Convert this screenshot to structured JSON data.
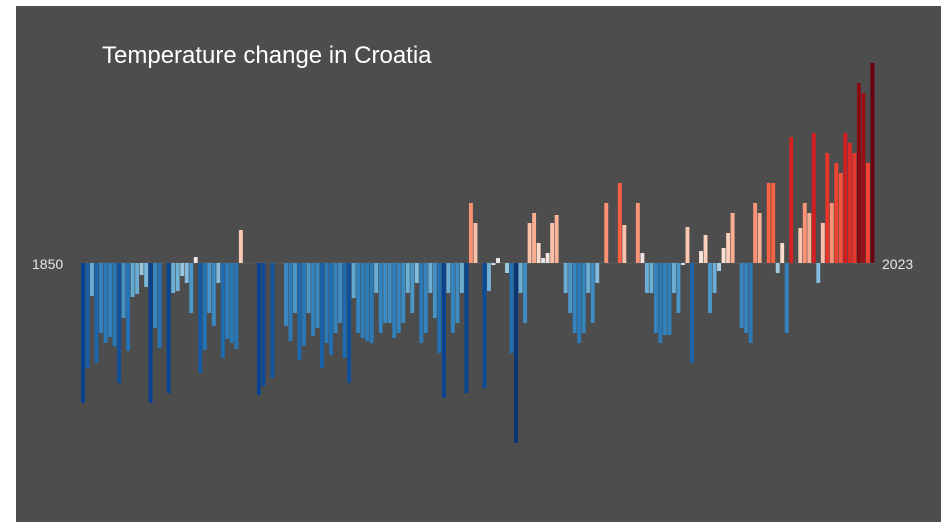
{
  "chart_data": {
    "type": "bar",
    "title": "Temperature change in Croatia",
    "start_label": "1850",
    "end_label": "2023",
    "x_start": 1850,
    "x_end": 2023,
    "ylim": [
      -2.1,
      2.0
    ],
    "colors": {
      "background": "#4d4d4d",
      "text": "#ffffff"
    },
    "values": [
      -1.4,
      -1.05,
      -0.33,
      -1.0,
      -0.7,
      -0.8,
      -0.74,
      -0.83,
      -1.2,
      -0.55,
      -0.88,
      -0.34,
      -0.31,
      -0.12,
      -0.24,
      -1.4,
      -0.65,
      -0.85,
      0.0,
      -1.3,
      -0.3,
      -0.28,
      -0.13,
      -0.2,
      -0.5,
      0.06,
      -1.1,
      -0.87,
      -0.5,
      -0.63,
      -0.2,
      -0.95,
      -0.76,
      -0.8,
      -0.86,
      0.33,
      0.0,
      0.0,
      0.0,
      -1.32,
      -1.23,
      0.0,
      -1.15,
      0.0,
      0.0,
      -0.63,
      -0.78,
      -0.5,
      -0.97,
      -0.83,
      -0.5,
      -0.73,
      -0.65,
      -1.05,
      -0.8,
      -0.92,
      -0.7,
      -0.6,
      -0.95,
      -1.2,
      -0.35,
      -0.7,
      -0.75,
      -0.78,
      -0.8,
      -0.3,
      -0.7,
      -0.6,
      -0.6,
      -0.75,
      -0.7,
      -0.6,
      -0.3,
      -0.5,
      -0.2,
      -0.8,
      -0.7,
      -0.3,
      -0.55,
      -0.9,
      -1.35,
      -0.3,
      -0.7,
      -0.6,
      -0.3,
      -1.3,
      0.6,
      0.4,
      0.0,
      -1.25,
      -0.28,
      -0.02,
      0.05,
      0.0,
      -0.1,
      -0.9,
      -1.8,
      -0.3,
      -0.6,
      0.4,
      0.5,
      0.2,
      0.05,
      0.1,
      0.4,
      0.48,
      0.0,
      -0.3,
      -0.5,
      -0.7,
      -0.8,
      -0.7,
      -0.3,
      -0.6,
      -0.2,
      0.0,
      0.6,
      0.0,
      0.0,
      0.8,
      0.38,
      0.0,
      0.0,
      0.6,
      0.1,
      -0.3,
      -0.3,
      -0.7,
      -0.8,
      -0.72,
      -0.72,
      -0.3,
      -0.5,
      -0.02,
      0.36,
      -1.0,
      0.0,
      0.12,
      0.28,
      -0.5,
      -0.3,
      -0.08,
      0.15,
      0.3,
      0.5,
      0.0,
      -0.65,
      -0.7,
      -0.8,
      0.6,
      0.5,
      0.0,
      0.8,
      0.8,
      -0.1,
      0.2,
      -0.7,
      1.26,
      0.0,
      0.35,
      0.6,
      0.5,
      1.3,
      -0.2,
      0.4,
      1.1,
      0.6,
      1.0,
      0.9,
      1.3,
      1.2,
      1.1,
      1.8,
      1.7,
      1.0,
      2.0
    ]
  }
}
